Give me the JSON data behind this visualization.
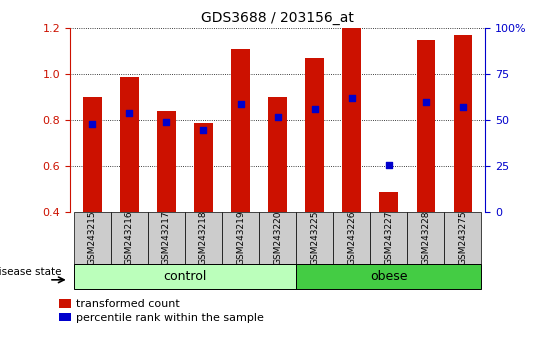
{
  "title": "GDS3688 / 203156_at",
  "samples": [
    "GSM243215",
    "GSM243216",
    "GSM243217",
    "GSM243218",
    "GSM243219",
    "GSM243220",
    "GSM243225",
    "GSM243226",
    "GSM243227",
    "GSM243228",
    "GSM243275"
  ],
  "transformed_count": [
    0.9,
    0.99,
    0.84,
    0.79,
    1.11,
    0.9,
    1.07,
    1.2,
    0.49,
    1.15,
    1.17
  ],
  "percentile_rank": [
    0.48,
    0.54,
    0.49,
    0.45,
    0.59,
    0.52,
    0.56,
    0.62,
    0.26,
    0.6,
    0.57
  ],
  "ymin": 0.4,
  "ymax": 1.2,
  "ylim_left": [
    0.4,
    1.2
  ],
  "ylim_right": [
    0.0,
    100.0
  ],
  "yticks_left": [
    0.4,
    0.6,
    0.8,
    1.0,
    1.2
  ],
  "yticks_right": [
    0,
    25,
    50,
    75,
    100
  ],
  "n_control": 6,
  "n_obese": 5,
  "bar_color": "#CC1100",
  "dot_color": "#0000CC",
  "control_color": "#BBFFBB",
  "obese_color": "#44CC44",
  "label_bg_color": "#CCCCCC",
  "legend_bar_label": "transformed count",
  "legend_dot_label": "percentile rank within the sample",
  "group_label": "disease state",
  "control_label": "control",
  "obese_label": "obese",
  "bar_width": 0.5
}
